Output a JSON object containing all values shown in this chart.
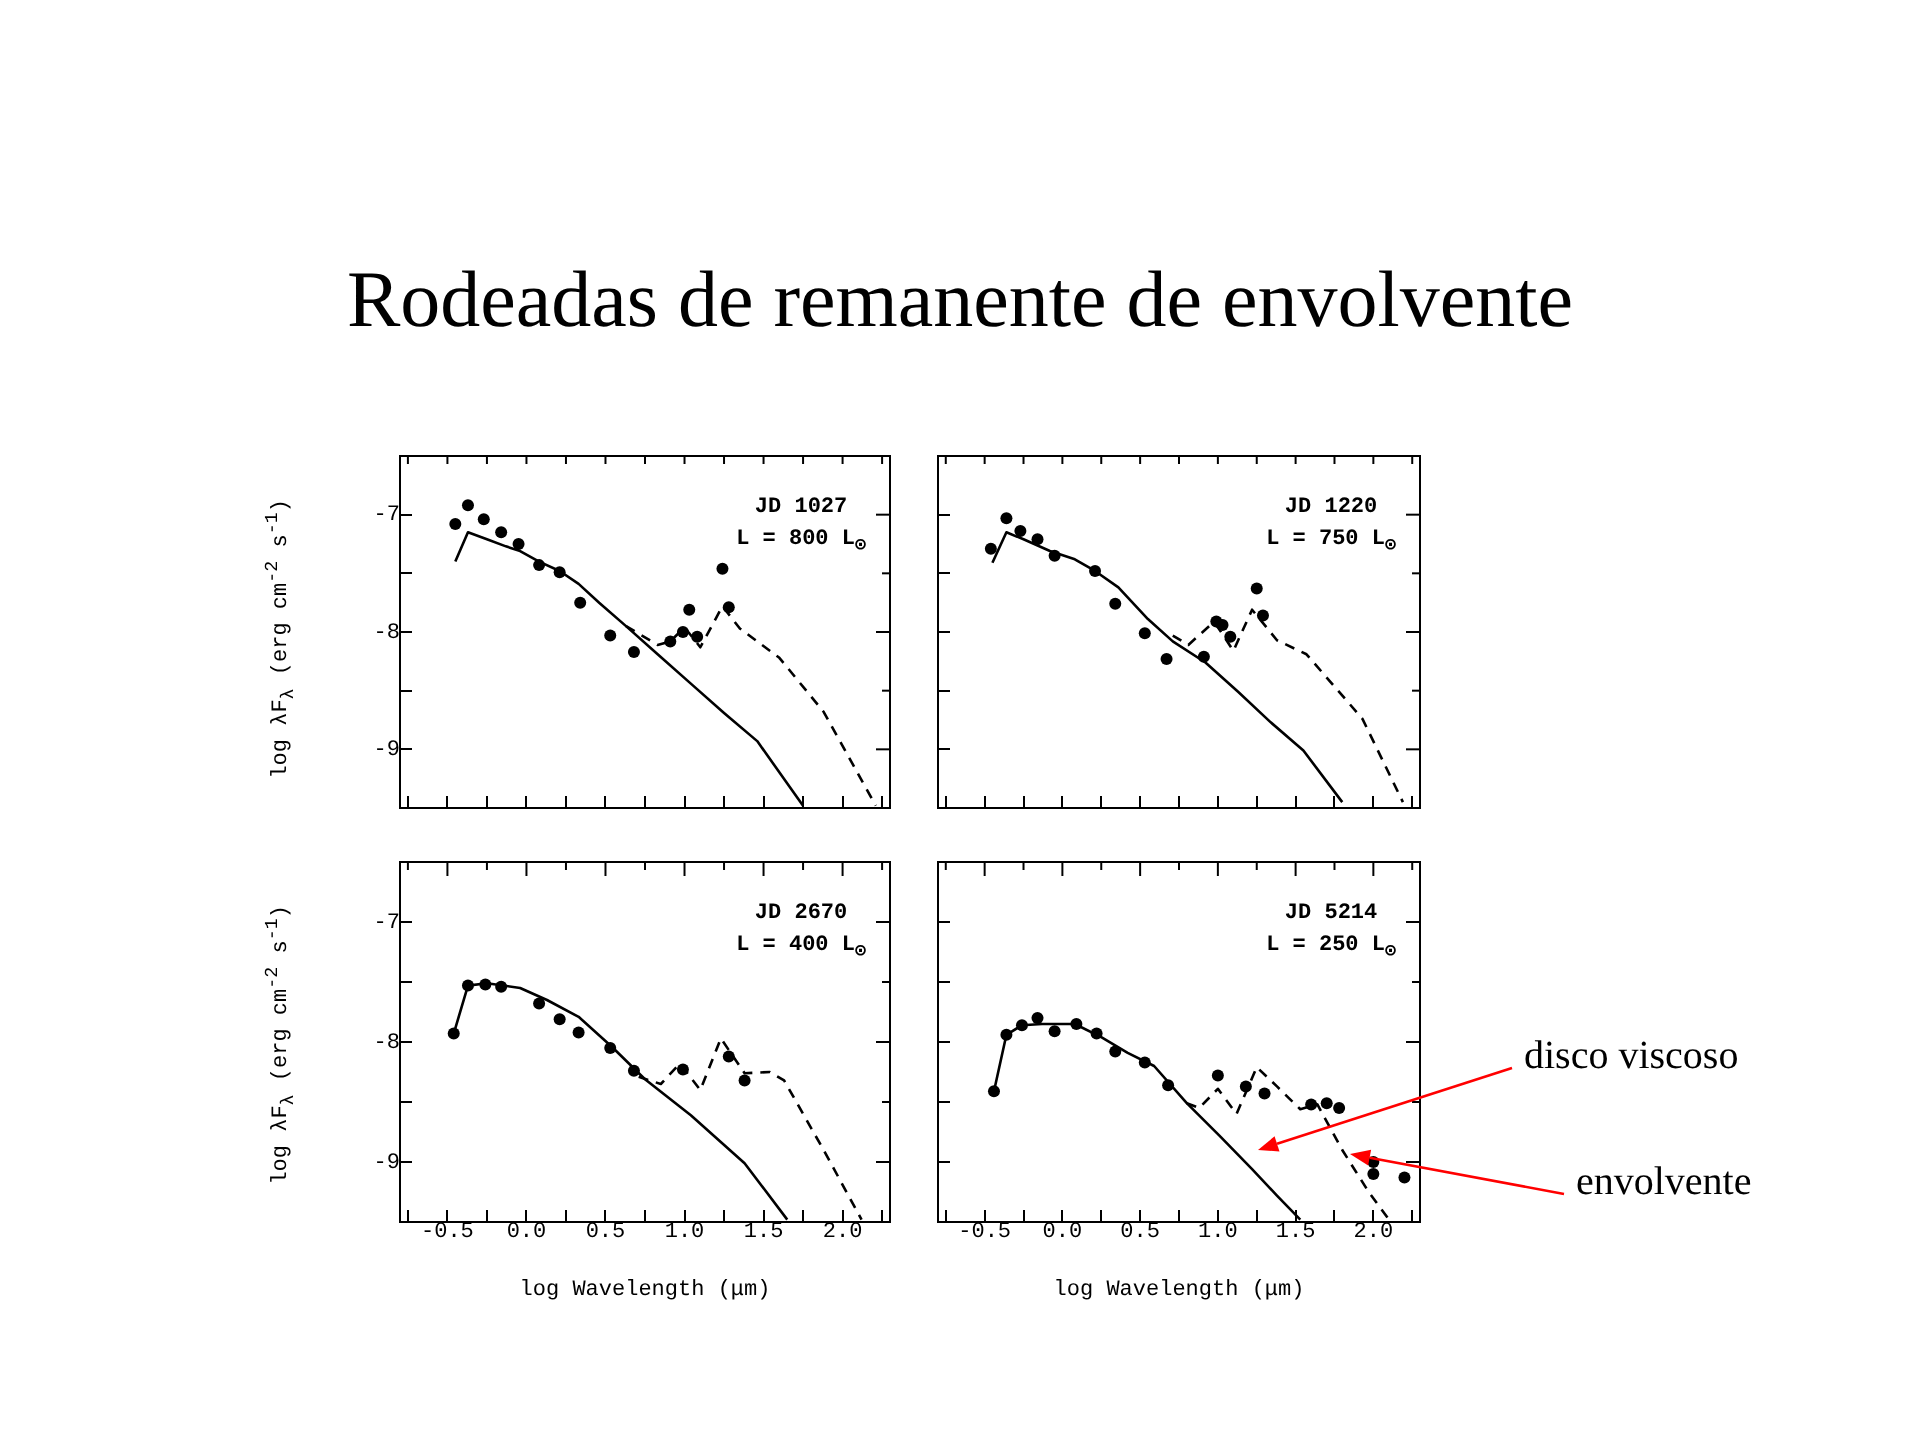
{
  "chart_data": [
    {
      "type": "line",
      "title": "Rodeadas de remanente de envolvente",
      "ylabel": "log λF$_{λ}$ (erg cm$^{-2}$ s$^{-1}$)",
      "xlim": [
        -0.8,
        2.3
      ],
      "ylim": [
        -9.5,
        -6.5
      ],
      "xticks": [
        {
          "value": -0.75,
          "label": null
        },
        {
          "value": -0.5,
          "label": null
        },
        {
          "value": -0.25,
          "label": null
        },
        {
          "value": 0,
          "label": null
        },
        {
          "value": 0.25,
          "label": null
        },
        {
          "value": 0.5,
          "label": null
        },
        {
          "value": 0.75,
          "label": null
        },
        {
          "value": 1,
          "label": null
        },
        {
          "value": 1.25,
          "label": null
        },
        {
          "value": 1.5,
          "label": null
        },
        {
          "value": 1.75,
          "label": null
        },
        {
          "value": 2,
          "label": null
        },
        {
          "value": 2.25,
          "label": null
        }
      ],
      "yticks": [
        -9,
        {
          "value": -8.5,
          "label": null
        },
        -8,
        {
          "value": -7.5,
          "label": null
        },
        -7
      ],
      "tick_labels": "y",
      "grid": false,
      "legend": false,
      "annotations": [
        "JD 1027",
        "L = 800 L$_{⊙}$"
      ],
      "series": [
        {
          "type": "scatter",
          "color": "#000000",
          "marker": "circle",
          "x": [
            -0.45,
            -0.37,
            -0.27,
            -0.16,
            -0.05,
            0.08,
            0.21,
            0.34,
            0.53,
            0.68,
            0.91,
            0.99,
            1.03,
            1.08,
            1.24,
            1.28
          ],
          "values": [
            -7.08,
            -6.92,
            -7.04,
            -7.15,
            -7.25,
            -7.43,
            -7.49,
            -7.75,
            -8.03,
            -8.17,
            -8.08,
            -8.0,
            -7.81,
            -8.04,
            -7.46,
            -7.79
          ]
        },
        {
          "type": "line",
          "color": "#000000",
          "marker": "none",
          "line_style": "solid",
          "x": [
            -0.45,
            -0.37,
            -0.25,
            -0.13,
            -0.04,
            0.08,
            0.21,
            0.33,
            0.46,
            0.63,
            0.83,
            1.04,
            1.25,
            1.46,
            1.75
          ],
          "values": [
            -7.4,
            -7.15,
            -7.21,
            -7.27,
            -7.31,
            -7.4,
            -7.48,
            -7.59,
            -7.75,
            -7.95,
            -8.19,
            -8.44,
            -8.69,
            -8.93,
            -9.48
          ]
        },
        {
          "type": "line",
          "color": "#000000",
          "marker": "none",
          "line_style": "dashed",
          "x": [
            0.63,
            0.83,
            0.91,
            1.0,
            1.1,
            1.24,
            1.35,
            1.6,
            1.88,
            2.21
          ],
          "values": [
            -7.95,
            -8.11,
            -8.08,
            -7.96,
            -8.13,
            -7.78,
            -7.97,
            -8.22,
            -8.68,
            -9.48
          ]
        }
      ]
    },
    {
      "type": "line",
      "xlim": [
        -0.8,
        2.3
      ],
      "ylim": [
        -9.5,
        -6.5
      ],
      "xticks": [
        {
          "value": -0.75,
          "label": null
        },
        {
          "value": -0.5,
          "label": null
        },
        {
          "value": -0.25,
          "label": null
        },
        {
          "value": 0,
          "label": null
        },
        {
          "value": 0.25,
          "label": null
        },
        {
          "value": 0.5,
          "label": null
        },
        {
          "value": 0.75,
          "label": null
        },
        {
          "value": 1,
          "label": null
        },
        {
          "value": 1.25,
          "label": null
        },
        {
          "value": 1.5,
          "label": null
        },
        {
          "value": 1.75,
          "label": null
        },
        {
          "value": 2,
          "label": null
        },
        {
          "value": 2.25,
          "label": null
        }
      ],
      "yticks": [
        {
          "value": -9,
          "label": null
        },
        {
          "value": -8.5,
          "label": null
        },
        {
          "value": -8,
          "label": null
        },
        {
          "value": -7.5,
          "label": null
        },
        {
          "value": -7,
          "label": null
        }
      ],
      "tick_labels": false,
      "grid": false,
      "legend": false,
      "annotations": [
        "JD 1220",
        "L = 750 L$_{⊙}$"
      ],
      "series": [
        {
          "type": "scatter",
          "color": "#000000",
          "marker": "circle",
          "x": [
            -0.46,
            -0.36,
            -0.27,
            -0.16,
            -0.05,
            0.21,
            0.34,
            0.53,
            0.67,
            0.91,
            0.99,
            1.03,
            1.08,
            1.25,
            1.29
          ],
          "values": [
            -7.29,
            -7.03,
            -7.14,
            -7.21,
            -7.35,
            -7.48,
            -7.76,
            -8.01,
            -8.23,
            -8.21,
            -7.91,
            -7.94,
            -8.04,
            -7.63,
            -7.86
          ]
        },
        {
          "type": "line",
          "color": "#000000",
          "marker": "none",
          "line_style": "solid",
          "x": [
            -0.45,
            -0.36,
            -0.25,
            -0.08,
            0.08,
            0.21,
            0.36,
            0.55,
            0.71,
            0.92,
            1.13,
            1.34,
            1.55,
            1.8
          ],
          "values": [
            -7.41,
            -7.15,
            -7.21,
            -7.31,
            -7.38,
            -7.48,
            -7.62,
            -7.89,
            -8.08,
            -8.26,
            -8.51,
            -8.77,
            -9.01,
            -9.45
          ]
        },
        {
          "type": "line",
          "color": "#000000",
          "marker": "none",
          "line_style": "dashed",
          "x": [
            0.71,
            0.81,
            0.97,
            1.0,
            1.1,
            1.22,
            1.38,
            1.57,
            1.93,
            2.19
          ],
          "values": [
            -8.03,
            -8.11,
            -7.92,
            -7.96,
            -8.16,
            -7.81,
            -8.07,
            -8.19,
            -8.74,
            -9.45
          ]
        }
      ]
    },
    {
      "type": "line",
      "xlabel": "log Wavelength (μm)",
      "ylabel": "log λF$_{λ}$ (erg cm$^{-2}$ s$^{-1}$)",
      "xlim": [
        -0.8,
        2.3
      ],
      "ylim": [
        -9.5,
        -6.5
      ],
      "xticks": [
        {
          "value": -0.75,
          "label": null
        },
        -0.5,
        {
          "value": -0.25,
          "label": null
        },
        {
          "value": 0,
          "label": "0.0"
        },
        {
          "value": 0.25,
          "label": null
        },
        0.5,
        {
          "value": 0.75,
          "label": null
        },
        {
          "value": 1,
          "label": "1.0"
        },
        {
          "value": 1.25,
          "label": null
        },
        1.5,
        {
          "value": 1.75,
          "label": null
        },
        {
          "value": 2,
          "label": "2.0"
        },
        {
          "value": 2.25,
          "label": null
        }
      ],
      "yticks": [
        -9,
        {
          "value": -8.5,
          "label": null
        },
        -8,
        {
          "value": -7.5,
          "label": null
        },
        -7
      ],
      "grid": false,
      "legend": false,
      "annotations": [
        "JD 2670",
        "L = 400 L$_{⊙}$"
      ],
      "series": [
        {
          "type": "scatter",
          "color": "#000000",
          "marker": "circle",
          "x": [
            -0.46,
            -0.37,
            -0.26,
            -0.16,
            0.08,
            0.21,
            0.33,
            0.53,
            0.68,
            0.99,
            1.28,
            1.38
          ],
          "values": [
            -7.93,
            -7.53,
            -7.52,
            -7.54,
            -7.68,
            -7.81,
            -7.92,
            -8.05,
            -8.24,
            -8.23,
            -8.12,
            -8.32
          ]
        },
        {
          "type": "line",
          "color": "#000000",
          "marker": "none",
          "line_style": "solid",
          "x": [
            -0.46,
            -0.37,
            -0.25,
            -0.04,
            0.13,
            0.33,
            0.54,
            0.75,
            1.04,
            1.38,
            1.65
          ],
          "values": [
            -7.93,
            -7.53,
            -7.51,
            -7.55,
            -7.65,
            -7.79,
            -8.04,
            -8.31,
            -8.61,
            -9.01,
            -9.48
          ]
        },
        {
          "type": "line",
          "color": "#000000",
          "marker": "none",
          "line_style": "dashed",
          "x": [
            0.71,
            0.85,
            0.97,
            1.1,
            1.23,
            1.38,
            1.54,
            1.63,
            1.88,
            2.12
          ],
          "values": [
            -8.29,
            -8.35,
            -8.18,
            -8.4,
            -7.97,
            -8.26,
            -8.25,
            -8.32,
            -8.9,
            -9.48
          ]
        }
      ]
    },
    {
      "type": "line",
      "xlabel": "log Wavelength (μm)",
      "xlim": [
        -0.8,
        2.3
      ],
      "ylim": [
        -9.5,
        -6.5
      ],
      "xticks": [
        {
          "value": -0.75,
          "label": null
        },
        -0.5,
        {
          "value": -0.25,
          "label": null
        },
        {
          "value": 0,
          "label": "0.0"
        },
        {
          "value": 0.25,
          "label": null
        },
        0.5,
        {
          "value": 0.75,
          "label": null
        },
        {
          "value": 1,
          "label": "1.0"
        },
        {
          "value": 1.25,
          "label": null
        },
        1.5,
        {
          "value": 1.75,
          "label": null
        },
        {
          "value": 2,
          "label": "2.0"
        },
        {
          "value": 2.25,
          "label": null
        }
      ],
      "yticks": [
        {
          "value": -9,
          "label": null
        },
        {
          "value": -8.5,
          "label": null
        },
        {
          "value": -8,
          "label": null
        },
        {
          "value": -7.5,
          "label": null
        },
        {
          "value": -7,
          "label": null
        }
      ],
      "tick_labels": "x",
      "grid": false,
      "legend": false,
      "annotations": [
        "JD 5214",
        "L = 250 L$_{⊙}$",
        "disco viscoso",
        "envolvente"
      ],
      "series": [
        {
          "type": "scatter",
          "color": "#000000",
          "marker": "circle",
          "x": [
            -0.44,
            -0.36,
            -0.26,
            -0.16,
            -0.05,
            0.09,
            0.22,
            0.34,
            0.53,
            0.68,
            1.0,
            1.18,
            1.3,
            1.6,
            1.7,
            1.78,
            2.0,
            2.0,
            2.2
          ],
          "values": [
            -8.41,
            -7.94,
            -7.86,
            -7.8,
            -7.91,
            -7.85,
            -7.93,
            -8.08,
            -8.17,
            -8.36,
            -8.28,
            -8.37,
            -8.43,
            -8.52,
            -8.51,
            -8.55,
            -9.0,
            -9.1,
            -9.13
          ]
        },
        {
          "type": "line",
          "color": "#000000",
          "marker": "none",
          "line_style": "solid",
          "x": [
            -0.44,
            -0.36,
            -0.26,
            -0.13,
            0.08,
            0.25,
            0.42,
            0.59,
            0.8,
            1.01,
            1.22,
            1.38,
            1.53
          ],
          "values": [
            -8.41,
            -7.94,
            -7.86,
            -7.85,
            -7.85,
            -7.96,
            -8.09,
            -8.2,
            -8.51,
            -8.78,
            -9.06,
            -9.28,
            -9.48
          ]
        },
        {
          "type": "line",
          "color": "#000000",
          "marker": "none",
          "line_style": "dashed",
          "x": [
            0.8,
            0.88,
            1.0,
            1.12,
            1.25,
            1.38,
            1.53,
            1.64,
            1.8,
            1.97,
            2.1
          ],
          "values": [
            -8.51,
            -8.55,
            -8.39,
            -8.6,
            -8.21,
            -8.37,
            -8.56,
            -8.52,
            -8.9,
            -9.25,
            -9.48
          ]
        }
      ]
    }
  ]
}
